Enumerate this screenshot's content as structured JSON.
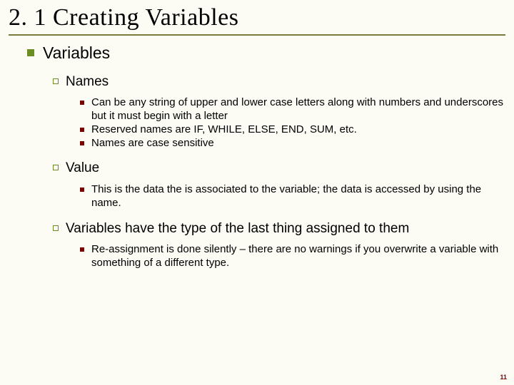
{
  "colors": {
    "background": "#fcfcf5",
    "title_underline": "#7a7a3a",
    "bullet_green": "#6b8e23",
    "bullet_red": "#7a0000",
    "text": "#000000"
  },
  "typography": {
    "title_family": "Times New Roman",
    "title_size_pt": 26,
    "body_family": "Arial",
    "lvl1_size_pt": 17,
    "lvl2_size_pt": 14,
    "lvl3_size_pt": 11
  },
  "title": "2. 1 Creating Variables",
  "lvl1": {
    "text": "Variables"
  },
  "sec1": {
    "heading": "Names",
    "items": [
      "Can be any string of upper and lower case letters along with numbers and underscores but it must begin with a letter",
      "Reserved names are IF, WHILE, ELSE, END, SUM, etc.",
      "Names are case sensitive"
    ]
  },
  "sec2": {
    "heading": "Value",
    "items": [
      "This is the data the is associated to the variable; the data is accessed by using the name."
    ]
  },
  "sec3": {
    "heading": "Variables have the type of the last thing assigned to them",
    "items": [
      "Re-assignment is done silently – there are no warnings if you overwrite a variable with something of a different type."
    ]
  },
  "page_number": "11"
}
